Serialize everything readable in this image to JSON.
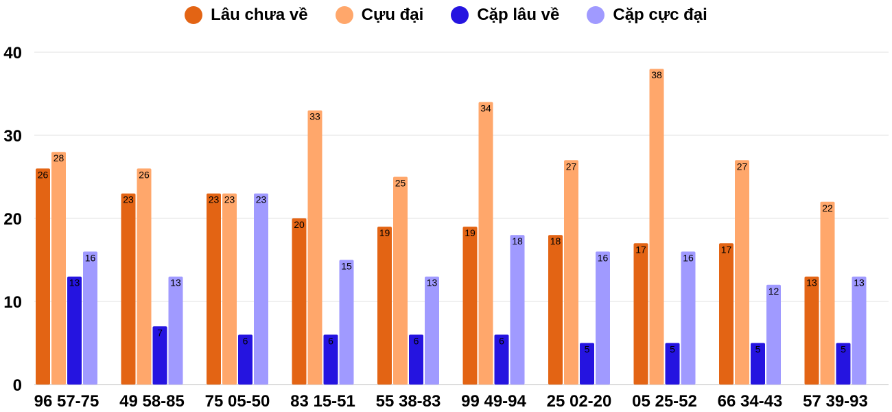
{
  "chart_data": {
    "type": "bar",
    "title": "",
    "xlabel": "",
    "ylabel": "",
    "ylim": [
      0,
      40
    ],
    "yticks": [
      0,
      10,
      20,
      30,
      40
    ],
    "grid": true,
    "legend_position": "top",
    "data_labels": true,
    "categories": [
      "96 57-75",
      "49 58-85",
      "75 05-50",
      "83 15-51",
      "55 38-83",
      "99 49-94",
      "25 02-20",
      "05 25-52",
      "66 34-43",
      "57 39-93"
    ],
    "series": [
      {
        "name": "Lâu chưa về",
        "color": "#e36414",
        "values": [
          26,
          23,
          23,
          20,
          19,
          19,
          18,
          17,
          17,
          13
        ]
      },
      {
        "name": "Cựu đại",
        "color": "#ffa76b",
        "values": [
          28,
          26,
          23,
          33,
          25,
          34,
          27,
          38,
          27,
          22
        ]
      },
      {
        "name": "Cặp lâu về",
        "color": "#2514e0",
        "values": [
          13,
          7,
          6,
          6,
          6,
          6,
          5,
          5,
          5,
          5
        ]
      },
      {
        "name": "Cặp cực đại",
        "color": "#a09aff",
        "values": [
          16,
          13,
          23,
          15,
          13,
          18,
          16,
          16,
          12,
          13
        ]
      }
    ]
  }
}
